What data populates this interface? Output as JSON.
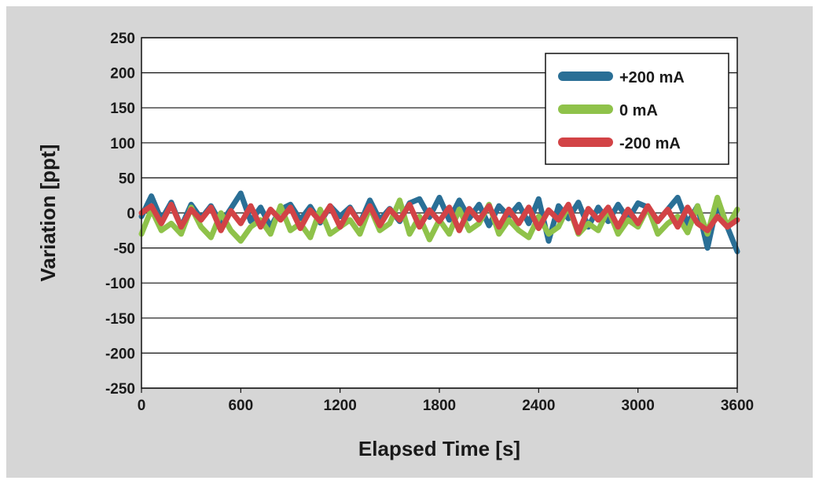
{
  "chart_data": {
    "type": "line",
    "title": "",
    "xlabel": "Elapsed Time [s]",
    "ylabel": "Variation [ppt]",
    "xlim": [
      0,
      3600
    ],
    "ylim": [
      -250,
      250
    ],
    "xticks": [
      0,
      600,
      1200,
      1800,
      2400,
      3000,
      3600
    ],
    "yticks": [
      250,
      200,
      150,
      100,
      50,
      0,
      -50,
      -100,
      -150,
      -200,
      -250
    ],
    "grid": "horizontal",
    "legend_position": "top-right",
    "series": [
      {
        "name": "+200 mA",
        "color": "#2a6f96",
        "x": [
          0,
          60,
          120,
          180,
          240,
          300,
          360,
          420,
          480,
          540,
          600,
          660,
          720,
          780,
          840,
          900,
          960,
          1020,
          1080,
          1140,
          1200,
          1260,
          1320,
          1380,
          1440,
          1500,
          1560,
          1620,
          1680,
          1740,
          1800,
          1860,
          1920,
          1980,
          2040,
          2100,
          2160,
          2220,
          2280,
          2340,
          2400,
          2460,
          2520,
          2580,
          2640,
          2700,
          2760,
          2820,
          2880,
          2940,
          3000,
          3060,
          3120,
          3180,
          3240,
          3300,
          3360,
          3420,
          3480,
          3540,
          3600
        ],
        "values": [
          -5,
          24,
          -10,
          15,
          -20,
          12,
          -8,
          10,
          -15,
          6,
          28,
          -12,
          8,
          -20,
          5,
          12,
          -10,
          9,
          -14,
          10,
          -5,
          8,
          -15,
          18,
          -10,
          6,
          -12,
          14,
          20,
          -6,
          22,
          -10,
          18,
          -8,
          12,
          -18,
          10,
          -5,
          12,
          -15,
          20,
          -40,
          10,
          -8,
          15,
          -20,
          8,
          -12,
          12,
          -10,
          14,
          8,
          -12,
          5,
          22,
          -15,
          10,
          -50,
          14,
          -20,
          -55
        ]
      },
      {
        "name": "0 mA",
        "color": "#8fc24a",
        "x": [
          0,
          60,
          120,
          180,
          240,
          300,
          360,
          420,
          480,
          540,
          600,
          660,
          720,
          780,
          840,
          900,
          960,
          1020,
          1080,
          1140,
          1200,
          1260,
          1320,
          1380,
          1440,
          1500,
          1560,
          1620,
          1680,
          1740,
          1800,
          1860,
          1920,
          1980,
          2040,
          2100,
          2160,
          2220,
          2280,
          2340,
          2400,
          2460,
          2520,
          2580,
          2640,
          2700,
          2760,
          2820,
          2880,
          2940,
          3000,
          3060,
          3120,
          3180,
          3240,
          3300,
          3360,
          3420,
          3480,
          3540,
          3600
        ],
        "values": [
          -30,
          5,
          -25,
          -15,
          -30,
          8,
          -20,
          -35,
          0,
          -25,
          -40,
          -20,
          -10,
          -30,
          10,
          -25,
          -15,
          -35,
          5,
          -30,
          -20,
          -10,
          -30,
          8,
          -25,
          -15,
          18,
          -30,
          -5,
          -38,
          -10,
          -30,
          5,
          -25,
          -15,
          12,
          -30,
          -10,
          -25,
          -35,
          -5,
          -30,
          -20,
          10,
          -30,
          -15,
          -25,
          5,
          -30,
          -10,
          -20,
          8,
          -30,
          -15,
          -5,
          -28,
          10,
          -30,
          22,
          -20,
          5
        ]
      },
      {
        "name": "-200 mA",
        "color": "#d24346",
        "x": [
          0,
          60,
          120,
          180,
          240,
          300,
          360,
          420,
          480,
          540,
          600,
          660,
          720,
          780,
          840,
          900,
          960,
          1020,
          1080,
          1140,
          1200,
          1260,
          1320,
          1380,
          1440,
          1500,
          1560,
          1620,
          1680,
          1740,
          1800,
          1860,
          1920,
          1980,
          2040,
          2100,
          2160,
          2220,
          2280,
          2340,
          2400,
          2460,
          2520,
          2580,
          2640,
          2700,
          2760,
          2820,
          2880,
          2940,
          3000,
          3060,
          3120,
          3180,
          3240,
          3300,
          3360,
          3420,
          3480,
          3540,
          3600
        ],
        "values": [
          0,
          10,
          -15,
          12,
          -20,
          5,
          -10,
          8,
          -25,
          3,
          -15,
          10,
          -20,
          5,
          -10,
          8,
          -22,
          4,
          -12,
          10,
          -20,
          6,
          -15,
          10,
          -18,
          5,
          -10,
          12,
          -20,
          4,
          -12,
          8,
          -25,
          6,
          -10,
          10,
          -20,
          5,
          -15,
          8,
          -22,
          4,
          -10,
          12,
          -28,
          6,
          -10,
          8,
          -20,
          5,
          -15,
          10,
          -12,
          5,
          -20,
          8,
          -15,
          -25,
          -5,
          -20,
          -10
        ]
      }
    ]
  }
}
